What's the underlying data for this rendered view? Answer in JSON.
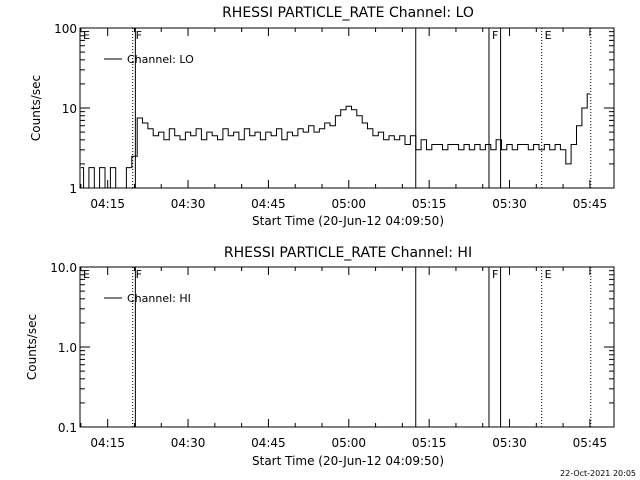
{
  "chart_data": [
    {
      "type": "line",
      "title": "RHESSI PARTICLE_RATE Channel: LO",
      "xlabel": "Start Time (20-Jun-12 04:09:50)",
      "ylabel": "Counts/sec",
      "yscale": "log",
      "ylim": [
        1,
        100
      ],
      "xlim": [
        "04:09:50",
        "05:49:30"
      ],
      "x_ticks": [
        "04:15",
        "04:30",
        "04:45",
        "05:00",
        "05:15",
        "05:30",
        "05:45"
      ],
      "y_ticks": [
        "1",
        "10",
        "100"
      ],
      "legend": "Channel: LO",
      "legend_position": "top-left",
      "event_flags": [
        {
          "label": "E",
          "time": "04:09:50",
          "style": "solid"
        },
        {
          "label": "F",
          "time": "04:19:40",
          "style": "dotted"
        },
        {
          "label": "",
          "time": "04:20:10",
          "style": "solid"
        },
        {
          "label": "",
          "time": "05:12:30",
          "style": "solid"
        },
        {
          "label": "F",
          "time": "05:26:10",
          "style": "solid"
        },
        {
          "label": "",
          "time": "05:28:20",
          "style": "solid"
        },
        {
          "label": "E",
          "time": "05:36:00",
          "style": "dotted"
        },
        {
          "label": "",
          "time": "05:45:10",
          "style": "dotted"
        }
      ],
      "series": [
        {
          "name": "Channel: LO",
          "x": [
            "04:10",
            "04:11",
            "04:12",
            "04:13",
            "04:14",
            "04:15",
            "04:16",
            "04:17",
            "04:18",
            "04:19",
            "04:20",
            "04:21",
            "04:22",
            "04:23",
            "04:24",
            "04:25",
            "04:26",
            "04:27",
            "04:28",
            "04:29",
            "04:30",
            "04:31",
            "04:32",
            "04:33",
            "04:34",
            "04:35",
            "04:36",
            "04:37",
            "04:38",
            "04:39",
            "04:40",
            "04:41",
            "04:42",
            "04:43",
            "04:44",
            "04:45",
            "04:46",
            "04:47",
            "04:48",
            "04:49",
            "04:50",
            "04:51",
            "04:52",
            "04:53",
            "04:54",
            "04:55",
            "04:56",
            "04:57",
            "04:58",
            "04:59",
            "05:00",
            "05:01",
            "05:02",
            "05:03",
            "05:04",
            "05:05",
            "05:06",
            "05:07",
            "05:08",
            "05:09",
            "05:10",
            "05:11",
            "05:12",
            "05:13",
            "05:14",
            "05:15",
            "05:16",
            "05:17",
            "05:18",
            "05:19",
            "05:20",
            "05:21",
            "05:22",
            "05:23",
            "05:24",
            "05:25",
            "05:26",
            "05:27",
            "05:28",
            "05:29",
            "05:30",
            "05:31",
            "05:32",
            "05:33",
            "05:34",
            "05:35",
            "05:36",
            "05:37",
            "05:38",
            "05:39",
            "05:40",
            "05:41",
            "05:42",
            "05:43",
            "05:44",
            "05:45"
          ],
          "y": [
            1.8,
            1.0,
            1.8,
            1.0,
            1.8,
            1.0,
            1.8,
            1.0,
            1.0,
            1.8,
            2.5,
            7.5,
            6.5,
            5.5,
            4.5,
            5.0,
            4.0,
            5.5,
            4.5,
            4.0,
            5.0,
            4.5,
            5.5,
            4.0,
            5.0,
            4.5,
            4.0,
            5.5,
            4.5,
            5.0,
            4.0,
            5.5,
            4.5,
            5.0,
            4.0,
            5.0,
            4.5,
            5.5,
            4.0,
            5.0,
            4.5,
            5.5,
            5.0,
            6.0,
            5.0,
            5.5,
            6.5,
            6.0,
            8.0,
            9.5,
            10.5,
            9.5,
            8.0,
            6.5,
            5.5,
            4.5,
            5.0,
            4.0,
            4.5,
            4.0,
            4.5,
            3.5,
            4.5,
            3.0,
            4.0,
            3.0,
            3.5,
            3.5,
            3.0,
            3.5,
            3.5,
            3.0,
            3.5,
            3.0,
            3.5,
            3.0,
            3.5,
            3.0,
            4.0,
            3.0,
            3.5,
            3.0,
            3.5,
            3.5,
            3.0,
            3.5,
            3.0,
            3.5,
            3.0,
            3.5,
            3.0,
            2.0,
            3.5,
            6.0,
            10.0,
            15.0
          ]
        }
      ]
    },
    {
      "type": "line",
      "title": "RHESSI PARTICLE_RATE Channel: HI",
      "xlabel": "Start Time (20-Jun-12 04:09:50)",
      "ylabel": "Counts/sec",
      "yscale": "log",
      "ylim": [
        0.1,
        10.0
      ],
      "xlim": [
        "04:09:50",
        "05:49:30"
      ],
      "x_ticks": [
        "04:15",
        "04:30",
        "04:45",
        "05:00",
        "05:15",
        "05:30",
        "05:45"
      ],
      "y_ticks": [
        "0.1",
        "1.0",
        "10.0"
      ],
      "legend": "Channel: HI",
      "legend_position": "top-left",
      "event_flags": [
        {
          "label": "E",
          "time": "04:09:50",
          "style": "solid"
        },
        {
          "label": "F",
          "time": "04:19:40",
          "style": "dotted"
        },
        {
          "label": "",
          "time": "04:20:10",
          "style": "solid"
        },
        {
          "label": "",
          "time": "05:12:30",
          "style": "solid"
        },
        {
          "label": "F",
          "time": "05:26:10",
          "style": "solid"
        },
        {
          "label": "",
          "time": "05:28:20",
          "style": "solid"
        },
        {
          "label": "E",
          "time": "05:36:00",
          "style": "dotted"
        },
        {
          "label": "",
          "time": "05:45:10",
          "style": "dotted"
        }
      ],
      "series": [
        {
          "name": "Channel: HI",
          "x": [],
          "y": []
        }
      ]
    }
  ],
  "footer": {
    "timestamp": "22-Oct-2021 20:05"
  }
}
